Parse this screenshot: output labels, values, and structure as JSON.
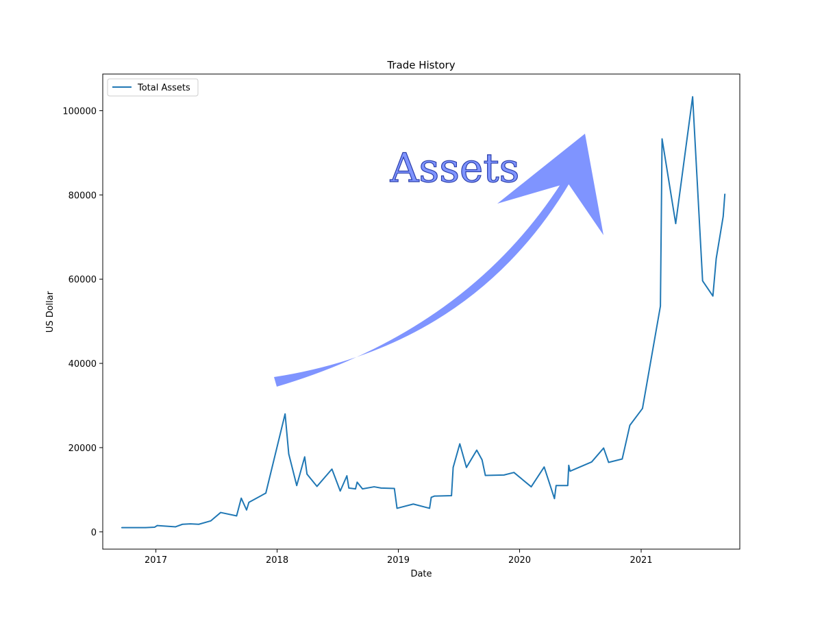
{
  "chart_data": {
    "type": "line",
    "title": "Trade History",
    "xlabel": "Date",
    "ylabel": "US Dollar",
    "x_ticks": [
      "2017",
      "2018",
      "2019",
      "2020",
      "2021"
    ],
    "y_ticks": [
      "0",
      "20000",
      "40000",
      "60000",
      "80000",
      "100000"
    ],
    "xlim": [
      "2016-07-25",
      "2021-10-25"
    ],
    "ylim": [
      -4100,
      108700
    ],
    "grid": false,
    "legend": {
      "position": "top-left",
      "entries": [
        "Total Assets"
      ]
    },
    "series": [
      {
        "name": "Total Assets",
        "color": "#1f77b4",
        "x": [
          "2016-09-20",
          "2016-11-10",
          "2016-12-01",
          "2016-12-28",
          "2017-01-05",
          "2017-03-01",
          "2017-03-22",
          "2017-04-15",
          "2017-05-10",
          "2017-06-15",
          "2017-07-15",
          "2017-09-01",
          "2017-09-15",
          "2017-10-01",
          "2017-10-08",
          "2017-11-28",
          "2018-01-25",
          "2018-02-05",
          "2018-03-01",
          "2018-03-25",
          "2018-04-01",
          "2018-05-01",
          "2018-06-15",
          "2018-07-10",
          "2018-07-30",
          "2018-08-05",
          "2018-08-25",
          "2018-08-30",
          "2018-09-15",
          "2018-10-20",
          "2018-11-10",
          "2018-12-20",
          "2018-12-28",
          "2019-02-15",
          "2019-04-05",
          "2019-04-10",
          "2019-04-20",
          "2019-06-10",
          "2019-06-15",
          "2019-07-05",
          "2019-07-25",
          "2019-08-25",
          "2019-09-10",
          "2019-09-20",
          "2019-11-15",
          "2019-12-15",
          "2020-02-05",
          "2020-03-15",
          "2020-04-15",
          "2020-04-20",
          "2020-05-25",
          "2020-05-28",
          "2020-06-01",
          "2020-08-05",
          "2020-09-10",
          "2020-09-25",
          "2020-11-05",
          "2020-11-28",
          "2021-01-05",
          "2021-02-28",
          "2021-03-05",
          "2021-04-15",
          "2021-06-05",
          "2021-07-05",
          "2021-08-05",
          "2021-08-15",
          "2021-09-05",
          "2021-09-10"
        ],
        "values": [
          1000,
          1000,
          1000,
          1100,
          1500,
          1200,
          1800,
          1900,
          1800,
          2600,
          4600,
          3800,
          8000,
          5200,
          7000,
          9200,
          28000,
          18500,
          11000,
          17800,
          13700,
          10800,
          14900,
          9700,
          13300,
          10400,
          10200,
          11800,
          10200,
          10700,
          10400,
          10300,
          5600,
          6600,
          5600,
          8200,
          8500,
          8600,
          15300,
          20900,
          15300,
          19400,
          17100,
          13400,
          13500,
          14100,
          10700,
          15400,
          7900,
          11000,
          11000,
          15800,
          14400,
          16600,
          19900,
          16500,
          17300,
          25300,
          29300,
          53600,
          93300,
          73200,
          103300,
          59600,
          56000,
          64900,
          74900,
          80200
        ]
      }
    ]
  },
  "annotation": {
    "text": "Assets",
    "color": "#7f94ff"
  }
}
